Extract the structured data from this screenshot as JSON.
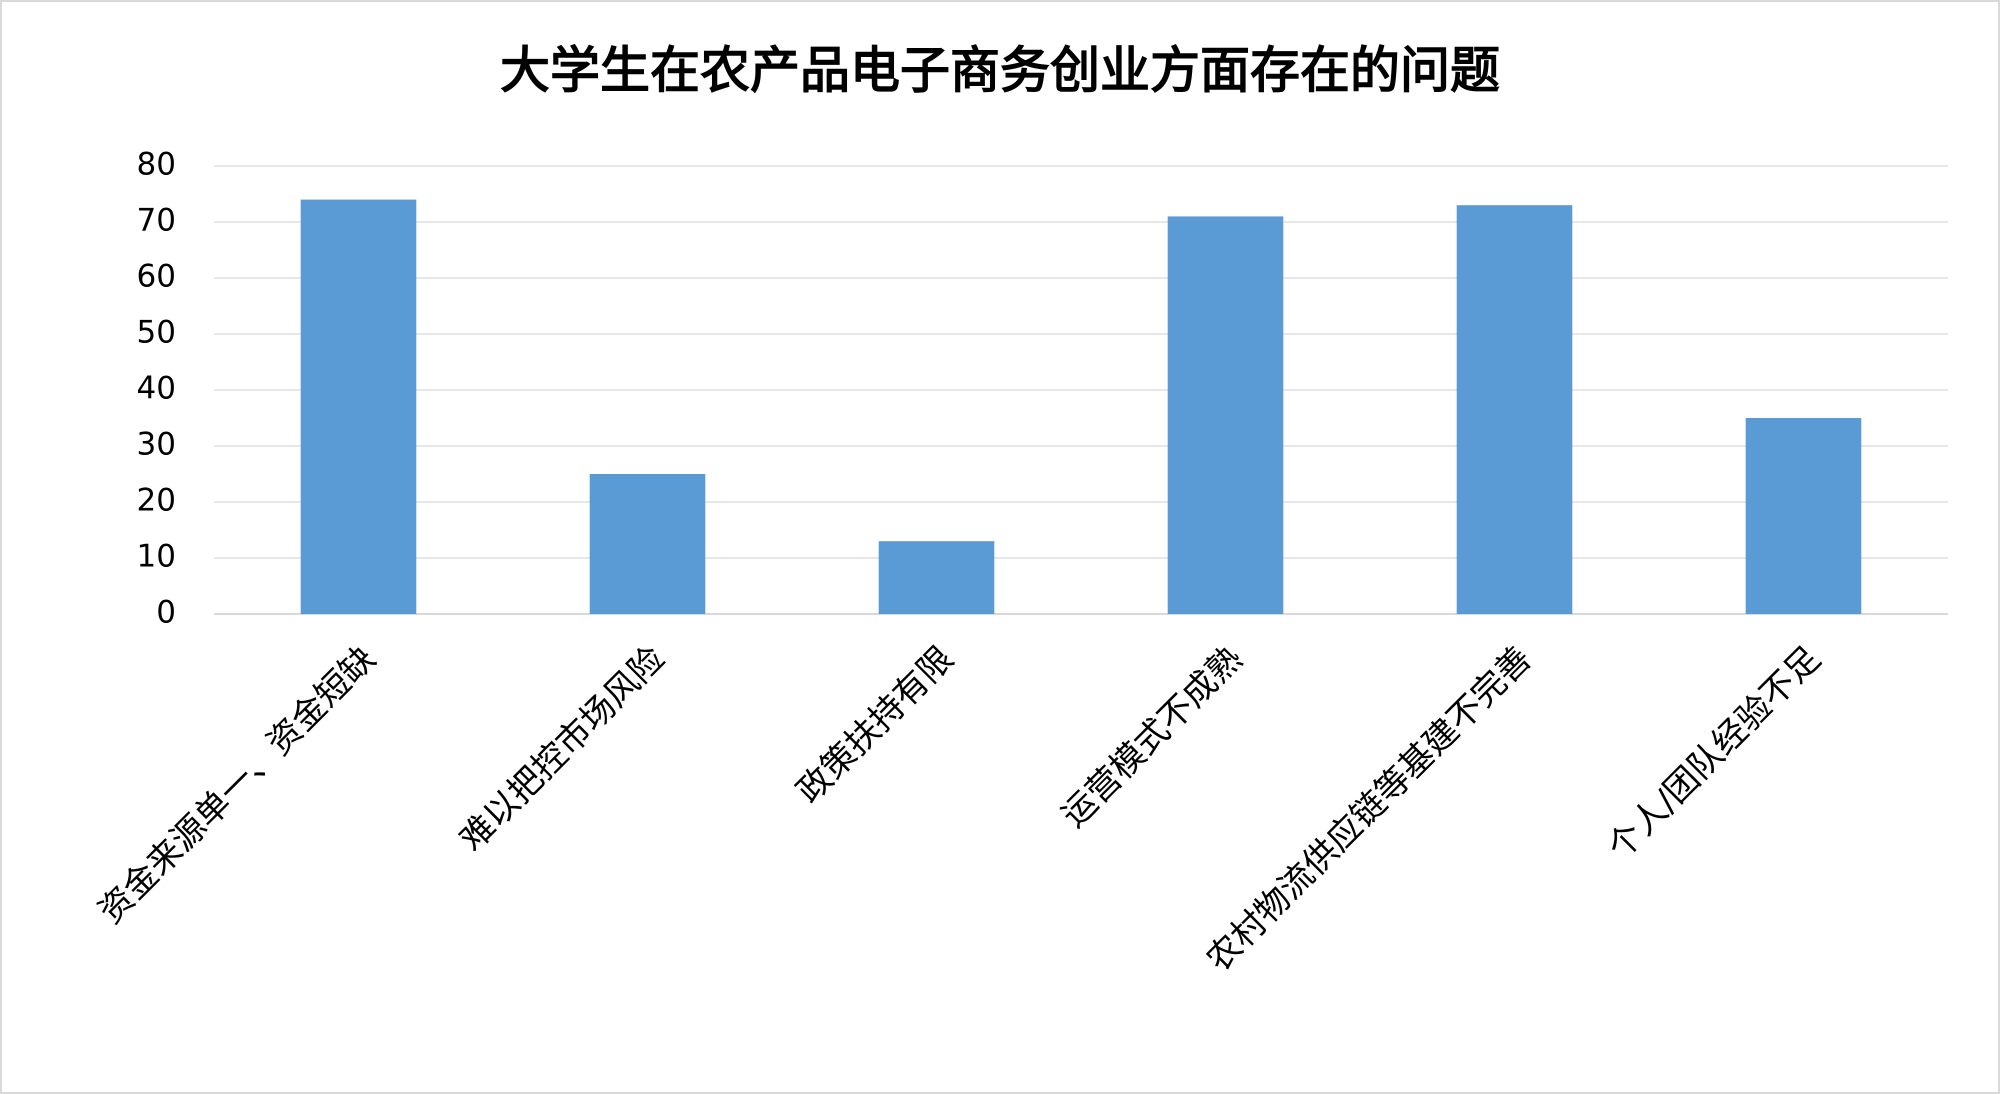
{
  "chart_data": {
    "type": "bar",
    "title": "大学生在农产品电子商务创业方面存在的问题",
    "categories": [
      "资金来源单一、资金短缺",
      "难以把控市场风险",
      "政策扶持有限",
      "运营模式不成熟",
      "农村物流供应链等基建不完善",
      "个人/团队经验不足"
    ],
    "values": [
      74,
      25,
      13,
      71,
      73,
      35
    ],
    "color": "#5b9bd5",
    "ylim": [
      0,
      80
    ],
    "yticks": [
      0,
      10,
      20,
      30,
      40,
      50,
      60,
      70,
      80
    ],
    "grid": true
  }
}
